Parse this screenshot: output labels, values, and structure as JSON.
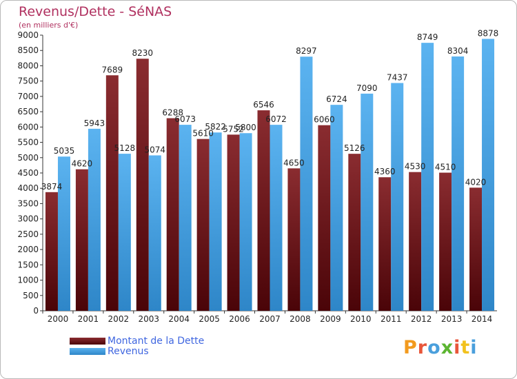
{
  "chart_data": {
    "type": "bar",
    "title": "Revenus/Dette - SéNAS",
    "subtitle": "(en milliers d'€)",
    "categories": [
      "2000",
      "2001",
      "2002",
      "2003",
      "2004",
      "2005",
      "2006",
      "2007",
      "2008",
      "2009",
      "2010",
      "2011",
      "2012",
      "2013",
      "2014"
    ],
    "series": [
      {
        "name": "Montant de la Dette",
        "color": "#7a1e22",
        "values": [
          3874,
          4620,
          7689,
          8230,
          6288,
          5610,
          5752,
          6546,
          4650,
          6060,
          5126,
          4360,
          4530,
          4510,
          4020
        ],
        "labels": [
          "3874",
          "4620",
          "7689",
          "8230",
          "6288",
          "5610",
          "5752",
          "6546",
          "4650",
          "6060",
          "5126",
          "4360",
          "4530",
          "4510",
          "4020"
        ]
      },
      {
        "name": "Revenus",
        "color": "#4aa8ec",
        "values": [
          5035,
          5943,
          5128,
          5074,
          6073,
          5822,
          5800,
          6072,
          8297,
          6724,
          7090,
          7437,
          8749,
          8304,
          8878
        ],
        "labels": [
          "5035",
          "5943",
          "5128",
          "5074",
          "6073",
          "5822",
          "5800",
          "6072",
          "8297",
          "6724",
          "7090",
          "7437",
          "8749",
          "8304",
          "8878"
        ]
      }
    ],
    "ylim": [
      0,
      9000
    ],
    "ytick_step": 500,
    "grid": false,
    "legend_position": "bottom-left"
  },
  "logo_text": "Proxiti"
}
